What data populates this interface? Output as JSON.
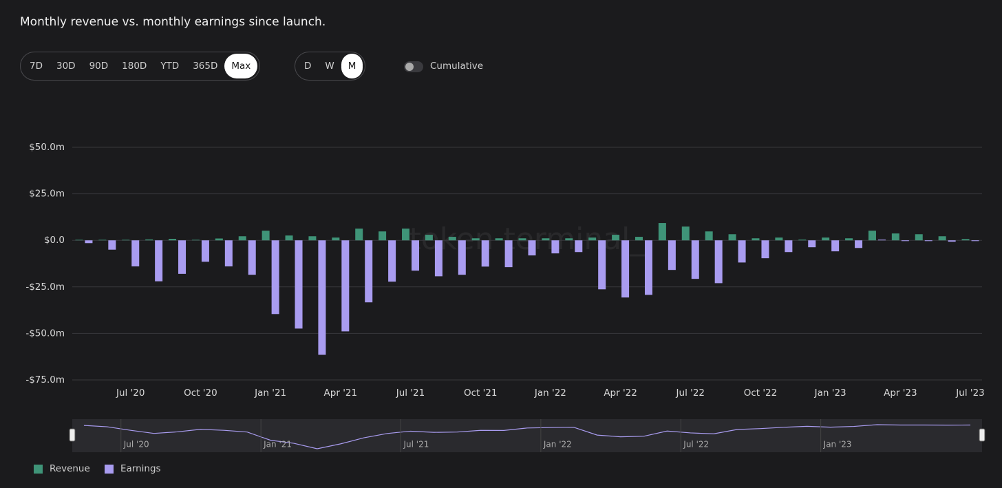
{
  "header": {
    "title": "Monthly revenue vs. monthly earnings since launch."
  },
  "controls": {
    "ranges": [
      "7D",
      "30D",
      "90D",
      "180D",
      "YTD",
      "365D",
      "Max"
    ],
    "selected_range_index": 6,
    "intervals": [
      "D",
      "W",
      "M"
    ],
    "selected_interval_index": 2,
    "toggle_label": "Cumulative"
  },
  "chart_data": {
    "type": "bar",
    "watermark": "token terminal_",
    "categories": [
      null,
      null,
      "Jul '20",
      null,
      null,
      "Oct '20",
      null,
      null,
      "Jan '21",
      null,
      null,
      "Apr '21",
      null,
      null,
      "Jul '21",
      null,
      null,
      "Oct '21",
      null,
      null,
      "Jan '22",
      null,
      null,
      "Apr '22",
      null,
      null,
      "Jul '22",
      null,
      null,
      "Oct '22",
      null,
      null,
      "Jan '23",
      null,
      null,
      "Apr '23",
      null,
      null,
      "Jul '23"
    ],
    "series": [
      {
        "name": "Revenue",
        "color": "#3f9478",
        "values": [
          0.3,
          0.3,
          0.3,
          0.5,
          0.8,
          0.3,
          1,
          2.2,
          5.2,
          2.6,
          2.2,
          1.5,
          6.3,
          4.8,
          6.3,
          3,
          1.9,
          1.1,
          1.1,
          1.1,
          1.1,
          1.1,
          1.5,
          3,
          1.9,
          9.3,
          7.4,
          4.8,
          3.3,
          1.1,
          1.5,
          0.4,
          1.5,
          1.1,
          5.2,
          3.7,
          3.3,
          2.2,
          0.7
        ]
      },
      {
        "name": "Earnings",
        "color": "#a99cf0",
        "values": [
          -1.5,
          -5,
          -14,
          -22,
          -18,
          -11.5,
          -14,
          -18.5,
          -39.6,
          -47.4,
          -61.5,
          -48.9,
          -33.3,
          -22.2,
          -16.3,
          -19.3,
          -18.5,
          -14.1,
          -14.4,
          -8.1,
          -7,
          -6.3,
          -26.3,
          -30.7,
          -29.3,
          -15.9,
          -20.7,
          -23,
          -11.9,
          -9.6,
          -6.3,
          -3.7,
          -5.9,
          -4.1,
          0.4,
          -0.4,
          -0.4,
          -0.7,
          -0.4
        ]
      }
    ],
    "ylim": [
      -75,
      50
    ],
    "yticks": [
      {
        "value": 50,
        "label": "$50.0m"
      },
      {
        "value": 25,
        "label": "$25.0m"
      },
      {
        "value": 0,
        "label": "$0.0"
      },
      {
        "value": -25,
        "label": "-$25.0m"
      },
      {
        "value": -50,
        "label": "-$50.0m"
      },
      {
        "value": -75,
        "label": "-$75.0m"
      }
    ],
    "grid": true
  },
  "navigator": {
    "labels": [
      "Jul '20",
      "Jan '21",
      "Jul '21",
      "Jan '22",
      "Jul '22",
      "Jan '23"
    ]
  }
}
